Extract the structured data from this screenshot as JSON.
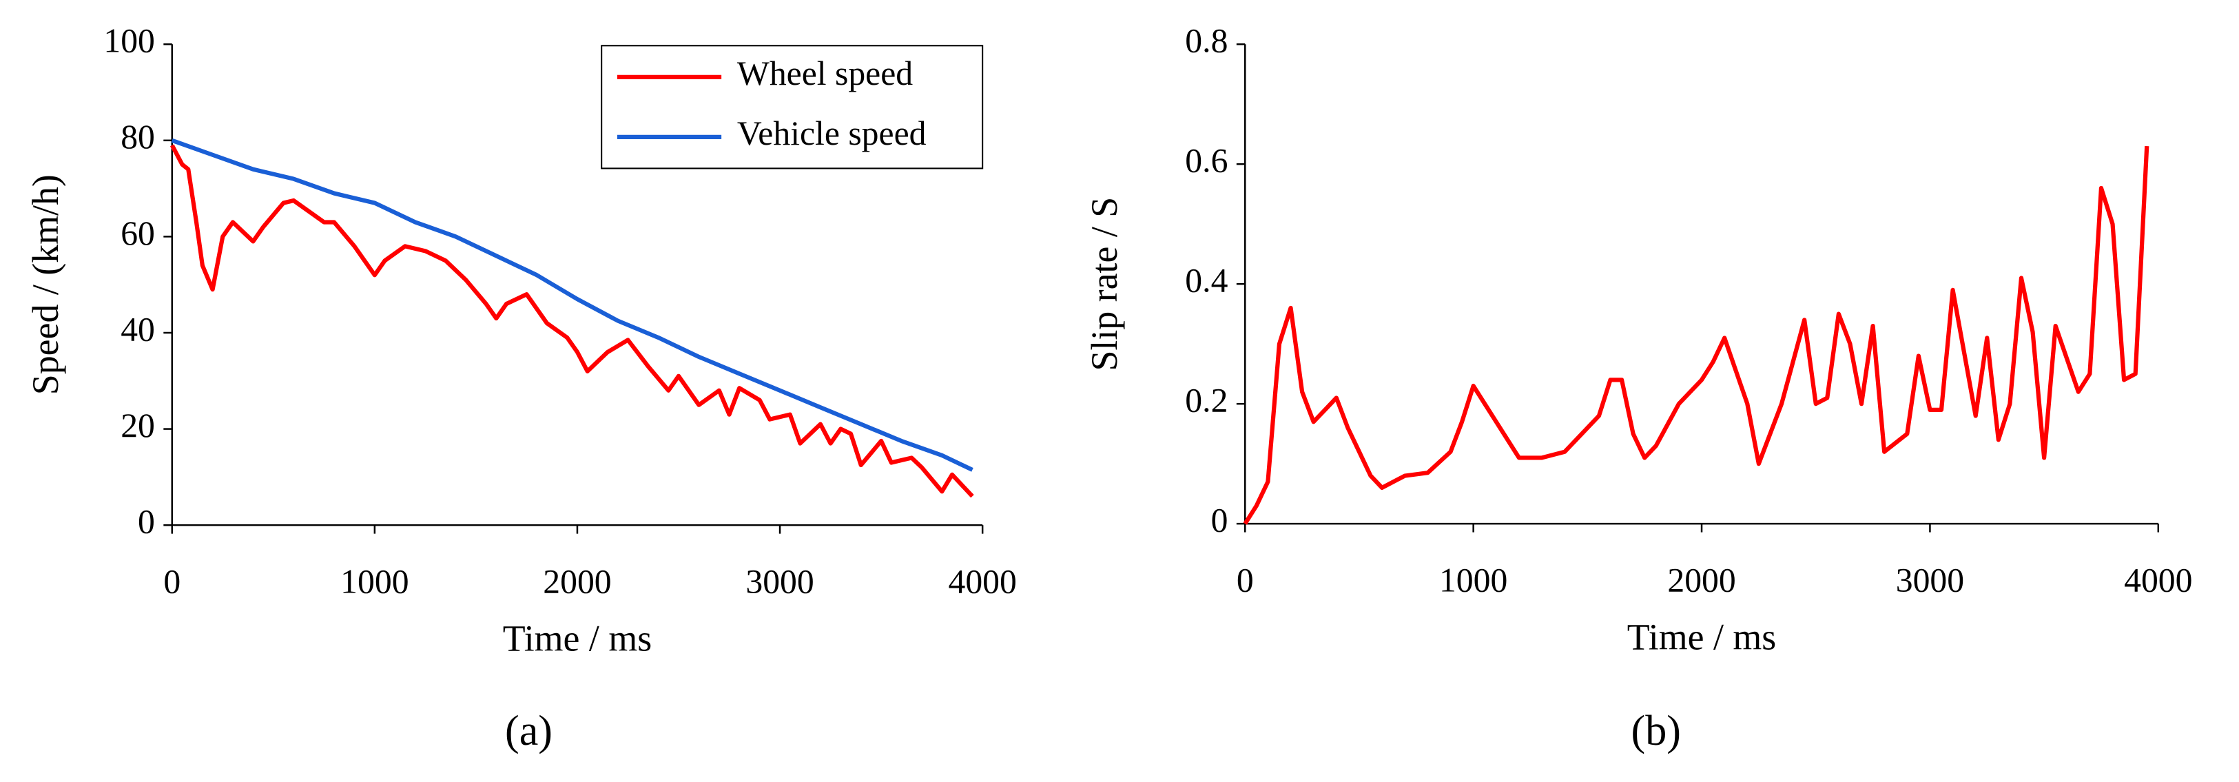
{
  "chart_data": [
    {
      "type": "line",
      "caption": "(a)",
      "xlabel": "Time / ms",
      "ylabel": "Speed / (km/h)",
      "xlim": [
        0,
        4000
      ],
      "xticks": [
        0,
        1000,
        2000,
        3000,
        4000
      ],
      "ylim": [
        0,
        100
      ],
      "yticks": [
        0,
        20,
        40,
        60,
        80,
        100
      ],
      "grid": false,
      "legend": "upper right",
      "series": [
        {
          "name": "Wheel speed",
          "color": "#ff0000",
          "x": [
            0,
            50,
            80,
            120,
            150,
            200,
            250,
            300,
            400,
            450,
            550,
            600,
            750,
            800,
            900,
            1000,
            1050,
            1150,
            1250,
            1350,
            1450,
            1550,
            1600,
            1650,
            1750,
            1850,
            1950,
            2000,
            2050,
            2150,
            2250,
            2350,
            2450,
            2500,
            2600,
            2700,
            2750,
            2800,
            2900,
            2950,
            3050,
            3100,
            3200,
            3250,
            3300,
            3350,
            3400,
            3500,
            3550,
            3650,
            3700,
            3800,
            3850,
            3950
          ],
          "values": [
            79,
            75,
            74,
            63,
            54,
            49,
            60,
            63,
            59,
            62,
            67,
            67.5,
            63,
            63,
            58,
            52,
            55,
            58,
            57,
            55,
            51,
            46,
            43,
            46,
            48,
            42,
            39,
            36,
            32,
            36,
            38.5,
            33,
            28,
            31,
            25,
            28,
            23,
            28.5,
            26,
            22,
            23,
            17,
            21,
            17,
            20,
            19,
            12.5,
            17.5,
            13,
            14,
            12,
            7,
            10.5,
            6
          ]
        },
        {
          "name": "Vehicle speed",
          "color": "#1a5fd6",
          "x": [
            0,
            200,
            400,
            600,
            800,
            1000,
            1200,
            1400,
            1600,
            1800,
            2000,
            2200,
            2400,
            2600,
            2800,
            3000,
            3200,
            3400,
            3600,
            3800,
            3950
          ],
          "values": [
            80,
            77,
            74,
            72,
            69,
            67,
            63,
            60,
            56,
            52,
            47,
            42.5,
            39,
            35,
            31.5,
            28,
            24.5,
            21,
            17.5,
            14.5,
            11.5
          ]
        }
      ]
    },
    {
      "type": "line",
      "caption": "(b)",
      "xlabel": "Time / ms",
      "ylabel": "Slip rate / S",
      "xlim": [
        0,
        4000
      ],
      "xticks": [
        0,
        1000,
        2000,
        3000,
        4000
      ],
      "ylim": [
        0,
        0.8
      ],
      "yticks": [
        0,
        0.2,
        0.4,
        0.6,
        0.8
      ],
      "grid": false,
      "series": [
        {
          "color": "#ff0000",
          "x": [
            0,
            50,
            100,
            150,
            200,
            250,
            300,
            350,
            400,
            450,
            500,
            550,
            600,
            700,
            800,
            900,
            950,
            1000,
            1100,
            1200,
            1300,
            1400,
            1450,
            1550,
            1600,
            1650,
            1700,
            1750,
            1800,
            1900,
            2000,
            2050,
            2100,
            2200,
            2250,
            2350,
            2450,
            2500,
            2550,
            2600,
            2650,
            2700,
            2750,
            2800,
            2900,
            2950,
            3000,
            3050,
            3100,
            3200,
            3250,
            3300,
            3350,
            3400,
            3450,
            3500,
            3550,
            3650,
            3700,
            3750,
            3800,
            3850,
            3900,
            3950
          ],
          "values": [
            0,
            0.03,
            0.07,
            0.3,
            0.36,
            0.22,
            0.17,
            0.19,
            0.21,
            0.16,
            0.12,
            0.08,
            0.06,
            0.08,
            0.085,
            0.12,
            0.17,
            0.23,
            0.17,
            0.11,
            0.11,
            0.12,
            0.14,
            0.18,
            0.24,
            0.24,
            0.15,
            0.11,
            0.13,
            0.2,
            0.24,
            0.27,
            0.31,
            0.2,
            0.1,
            0.2,
            0.34,
            0.2,
            0.21,
            0.35,
            0.3,
            0.2,
            0.33,
            0.12,
            0.15,
            0.28,
            0.19,
            0.19,
            0.39,
            0.18,
            0.31,
            0.14,
            0.2,
            0.41,
            0.32,
            0.11,
            0.33,
            0.22,
            0.25,
            0.56,
            0.5,
            0.24,
            0.25,
            0.63
          ]
        }
      ]
    }
  ]
}
